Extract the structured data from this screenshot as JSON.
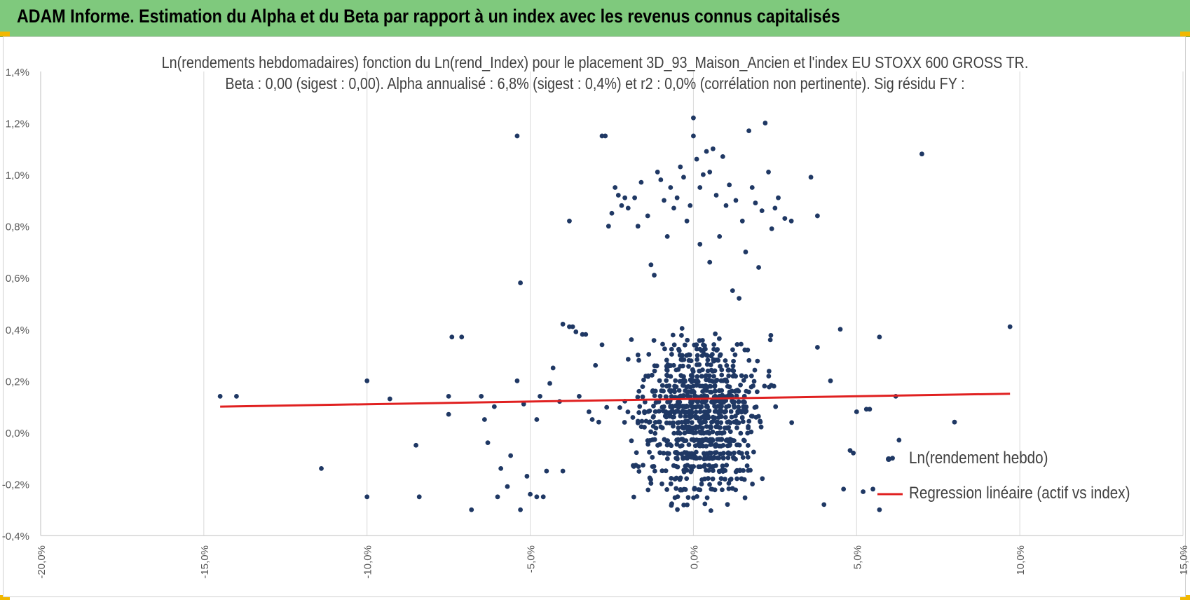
{
  "header": {
    "title": "ADAM Informe. Estimation du Alpha et du Beta par rapport à un index avec les revenus connus capitalisés",
    "background": "#7fc97d",
    "corner_color": "#f2b800"
  },
  "chart_data": {
    "type": "scatter",
    "title_line1": "Ln(rendements hebdomadaires) fonction du Ln(rend_Index) pour le placement 3D_93_Maison_Ancien et l'index EU STOXX 600 GROSS TR.",
    "title_line2": "Beta : 0,00 (sigest : 0,00). Alpha annualisé : 6,8% (sigest : 0,4%) et r2 : 0,0% (corrélation non pertinente). Sig résidu FY :",
    "xlim": [
      -0.2,
      0.15
    ],
    "ylim": [
      -0.004,
      0.014
    ],
    "x_ticks": [
      -0.2,
      -0.15,
      -0.1,
      -0.05,
      0.0,
      0.05,
      0.1,
      0.15
    ],
    "x_tick_labels": [
      "-20,0%",
      "-15,0%",
      "-10,0%",
      "-5,0%",
      "0,0%",
      "5,0%",
      "10,0%",
      "15,0%"
    ],
    "y_ticks": [
      -0.004,
      -0.002,
      0.0,
      0.002,
      0.004,
      0.006,
      0.008,
      0.01,
      0.012,
      0.014
    ],
    "y_tick_labels": [
      "-0,4%",
      "-0,2%",
      "0,0%",
      "0,2%",
      "0,4%",
      "0,6%",
      "0,8%",
      "1,0%",
      "1,2%",
      "1,4%"
    ],
    "grid": "vertical",
    "legend_position": "bottom-right",
    "series": [
      {
        "name": "Ln(rendement hebdo)",
        "kind": "scatter",
        "color": "#1f3864",
        "points": [
          [
            -0.145,
            0.0014
          ],
          [
            -0.14,
            0.0014
          ],
          [
            -0.114,
            -0.0014
          ],
          [
            -0.1,
            0.002
          ],
          [
            -0.1,
            -0.0025
          ],
          [
            -0.093,
            0.0013
          ],
          [
            -0.085,
            -0.0005
          ],
          [
            -0.084,
            -0.0025
          ],
          [
            -0.075,
            0.0014
          ],
          [
            -0.075,
            0.0007
          ],
          [
            -0.074,
            0.0037
          ],
          [
            -0.071,
            0.0037
          ],
          [
            -0.068,
            -0.003
          ],
          [
            -0.065,
            0.0014
          ],
          [
            -0.064,
            0.0005
          ],
          [
            -0.063,
            -0.0004
          ],
          [
            -0.061,
            0.001
          ],
          [
            -0.06,
            -0.0025
          ],
          [
            -0.059,
            -0.0014
          ],
          [
            -0.057,
            -0.0021
          ],
          [
            -0.056,
            -0.0009
          ],
          [
            -0.054,
            0.002
          ],
          [
            -0.054,
            0.0115
          ],
          [
            -0.053,
            0.0058
          ],
          [
            -0.053,
            -0.003
          ],
          [
            -0.052,
            0.0011
          ],
          [
            -0.051,
            -0.0017
          ],
          [
            -0.05,
            -0.0024
          ],
          [
            -0.048,
            0.0005
          ],
          [
            -0.048,
            -0.0025
          ],
          [
            -0.047,
            0.0014
          ],
          [
            -0.046,
            -0.0025
          ],
          [
            -0.045,
            -0.0015
          ],
          [
            -0.044,
            0.0019
          ],
          [
            -0.043,
            0.0025
          ],
          [
            -0.041,
            0.0012
          ],
          [
            -0.04,
            -0.0015
          ],
          [
            -0.04,
            0.0042
          ],
          [
            -0.038,
            0.0041
          ],
          [
            -0.038,
            0.0082
          ],
          [
            -0.037,
            0.0041
          ],
          [
            -0.036,
            0.0039
          ],
          [
            -0.035,
            0.0014
          ],
          [
            -0.034,
            0.0038
          ],
          [
            -0.033,
            0.0038
          ],
          [
            -0.032,
            0.0008
          ],
          [
            -0.031,
            0.0005
          ],
          [
            -0.03,
            0.0026
          ],
          [
            -0.029,
            0.0004
          ],
          [
            -0.028,
            0.0034
          ],
          [
            -0.028,
            0.0115
          ],
          [
            -0.027,
            0.0115
          ],
          [
            -0.026,
            0.008
          ],
          [
            -0.025,
            0.0085
          ],
          [
            -0.024,
            0.0095
          ],
          [
            -0.023,
            0.0092
          ],
          [
            -0.022,
            0.0088
          ],
          [
            -0.021,
            0.0091
          ],
          [
            -0.02,
            0.0087
          ],
          [
            -0.019,
            0.0036
          ],
          [
            -0.018,
            0.0091
          ],
          [
            -0.017,
            0.008
          ],
          [
            -0.016,
            0.0097
          ],
          [
            -0.014,
            0.0084
          ],
          [
            -0.013,
            0.0065
          ],
          [
            -0.012,
            0.0061
          ],
          [
            -0.011,
            0.0101
          ],
          [
            -0.01,
            0.0098
          ],
          [
            -0.009,
            0.009
          ],
          [
            -0.008,
            0.0076
          ],
          [
            -0.007,
            0.0095
          ],
          [
            -0.006,
            0.0087
          ],
          [
            -0.005,
            0.0091
          ],
          [
            -0.004,
            0.0103
          ],
          [
            -0.003,
            0.0099
          ],
          [
            -0.002,
            0.0082
          ],
          [
            -0.001,
            0.0088
          ],
          [
            0.0,
            0.0122
          ],
          [
            0.0,
            0.0115
          ],
          [
            0.001,
            0.0106
          ],
          [
            0.002,
            0.0095
          ],
          [
            0.002,
            0.0073
          ],
          [
            0.003,
            0.01
          ],
          [
            0.004,
            0.0109
          ],
          [
            0.005,
            0.0101
          ],
          [
            0.005,
            0.0066
          ],
          [
            0.006,
            0.011
          ],
          [
            0.007,
            0.0092
          ],
          [
            0.008,
            0.0076
          ],
          [
            0.009,
            0.0107
          ],
          [
            0.01,
            0.0088
          ],
          [
            0.011,
            0.0096
          ],
          [
            0.012,
            0.0055
          ],
          [
            0.013,
            0.009
          ],
          [
            0.014,
            0.0052
          ],
          [
            0.015,
            0.0082
          ],
          [
            0.016,
            0.007
          ],
          [
            0.017,
            0.0117
          ],
          [
            0.018,
            0.0095
          ],
          [
            0.019,
            0.0089
          ],
          [
            0.02,
            0.0064
          ],
          [
            0.021,
            0.0086
          ],
          [
            0.022,
            0.012
          ],
          [
            0.023,
            0.0101
          ],
          [
            0.024,
            0.0079
          ],
          [
            0.025,
            0.0087
          ],
          [
            0.026,
            0.0091
          ],
          [
            0.028,
            0.0083
          ],
          [
            0.03,
            0.0082
          ],
          [
            0.036,
            0.0099
          ],
          [
            0.038,
            0.0084
          ],
          [
            0.038,
            0.0033
          ],
          [
            0.04,
            -0.0028
          ],
          [
            0.042,
            0.002
          ],
          [
            0.045,
            0.004
          ],
          [
            0.046,
            -0.0022
          ],
          [
            0.048,
            -0.0007
          ],
          [
            0.049,
            -0.0008
          ],
          [
            0.05,
            0.0008
          ],
          [
            0.052,
            -0.0023
          ],
          [
            0.053,
            0.0009
          ],
          [
            0.054,
            0.0009
          ],
          [
            0.055,
            -0.0022
          ],
          [
            0.057,
            0.0037
          ],
          [
            0.057,
            -0.003
          ],
          [
            0.061,
            -0.001
          ],
          [
            0.062,
            0.0014
          ],
          [
            0.063,
            -0.0003
          ],
          [
            0.07,
            0.0108
          ],
          [
            0.08,
            0.0004
          ],
          [
            0.097,
            0.0041
          ]
        ],
        "cloud": {
          "count": 900,
          "x_sd": 0.017,
          "x_mean": 0.002,
          "y_levels": [
            -0.003,
            -0.0028,
            -0.0025,
            -0.0022,
            -0.002,
            -0.0018,
            -0.0015,
            -0.0013,
            -0.001,
            -0.0008,
            -0.0005,
            -0.0003,
            0.0,
            0.0002,
            0.0004,
            0.0006,
            0.0008,
            0.001,
            0.0012,
            0.0014,
            0.0016,
            0.0018,
            0.002,
            0.0022,
            0.0024,
            0.0026,
            0.0028,
            0.003,
            0.0032,
            0.0034,
            0.0036,
            0.0038,
            0.004
          ],
          "y_weights": [
            1,
            2,
            3,
            4,
            5,
            6,
            8,
            9,
            11,
            12,
            13,
            14,
            15,
            15,
            15,
            15,
            15,
            15,
            15,
            14,
            13,
            12,
            10,
            9,
            8,
            7,
            6,
            5,
            4,
            3,
            3,
            2,
            1
          ]
        }
      },
      {
        "name": "Regression linéaire (actif vs index)",
        "kind": "line",
        "color": "#e02020",
        "x": [
          -0.145,
          0.097
        ],
        "y": [
          0.001,
          0.0015
        ]
      }
    ]
  }
}
